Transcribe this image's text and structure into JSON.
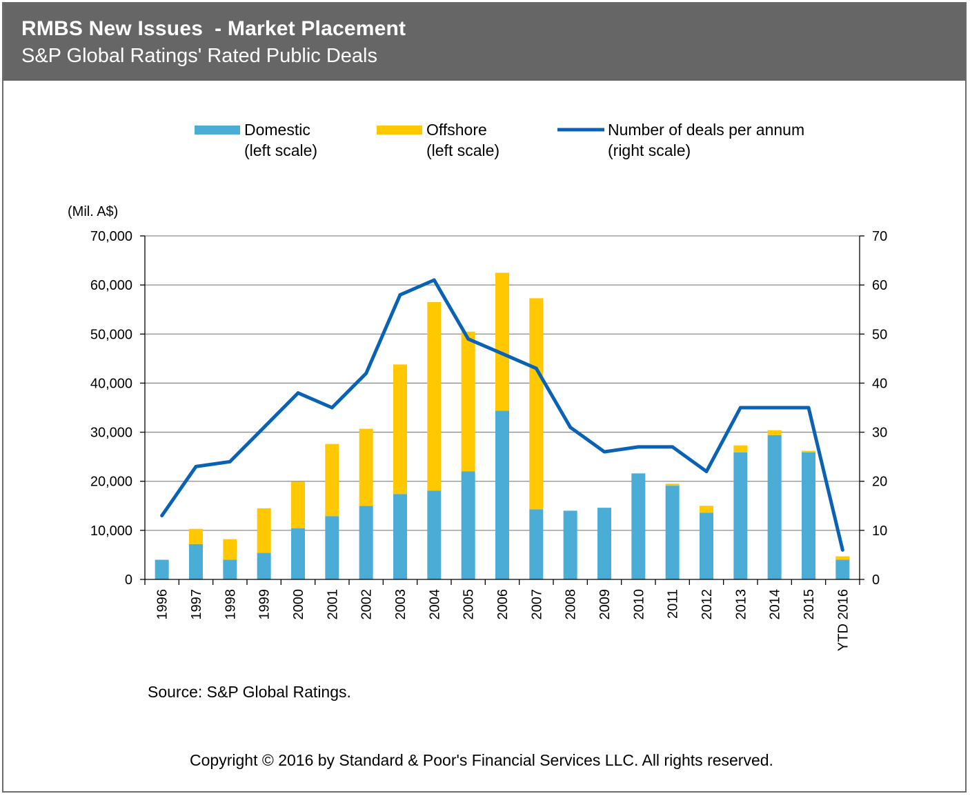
{
  "header": {
    "title": "RMBS New Issues  - Market Placement",
    "subtitle": "S&P Global Ratings' Rated Public Deals"
  },
  "colors": {
    "header_bg": "#666666",
    "domestic": "#4BACD6",
    "offshore": "#FFC800",
    "deals_line": "#0A62B4",
    "grid": "#8c8c8c"
  },
  "chart_data": {
    "type": "bar",
    "stacked": true,
    "categories": [
      "1996",
      "1997",
      "1998",
      "1999",
      "2000",
      "2001",
      "2002",
      "2003",
      "2004",
      "2005",
      "2006",
      "2007",
      "2008",
      "2009",
      "2010",
      "2011",
      "2012",
      "2013",
      "2014",
      "2015",
      "YTD 2016"
    ],
    "series": [
      {
        "name": "Domestic",
        "name_line2": "(left scale)",
        "axis": "left",
        "type": "bar",
        "values": [
          4000,
          7200,
          4000,
          5400,
          10400,
          12900,
          15000,
          17400,
          18100,
          22000,
          34400,
          14300,
          14000,
          14600,
          21600,
          19100,
          13600,
          25900,
          29400,
          25900,
          4000
        ]
      },
      {
        "name": "Offshore",
        "name_line2": "(left scale)",
        "axis": "left",
        "type": "bar",
        "values": [
          0,
          3100,
          4200,
          9100,
          9500,
          14700,
          15700,
          26400,
          38400,
          28500,
          28100,
          43000,
          0,
          0,
          0,
          400,
          1400,
          1400,
          1000,
          300,
          700
        ]
      },
      {
        "name": "Number of deals per annum",
        "name_line2": "(right scale)",
        "axis": "right",
        "type": "line",
        "values": [
          13,
          23,
          24,
          31,
          38,
          35,
          42,
          58,
          61,
          49,
          46,
          43,
          31,
          26,
          27,
          27,
          22,
          35,
          35,
          35,
          6
        ]
      }
    ],
    "y_left": {
      "label": "(Mil. A$)",
      "min": 0,
      "max": 70000,
      "ticks": [
        0,
        10000,
        20000,
        30000,
        40000,
        50000,
        60000,
        70000
      ],
      "tick_labels": [
        "0",
        "10,000",
        "20,000",
        "30,000",
        "40,000",
        "50,000",
        "60,000",
        "70,000"
      ]
    },
    "y_right": {
      "min": 0,
      "max": 70,
      "ticks": [
        0,
        10,
        20,
        30,
        40,
        50,
        60,
        70
      ],
      "tick_labels": [
        "0",
        "10",
        "20",
        "30",
        "40",
        "50",
        "60",
        "70"
      ]
    },
    "grid": true,
    "legend_position": "top"
  },
  "footer": {
    "source": "Source: S&P Global Ratings.",
    "copyright": "Copyright © 2016 by Standard & Poor's Financial Services LLC. All rights reserved."
  }
}
